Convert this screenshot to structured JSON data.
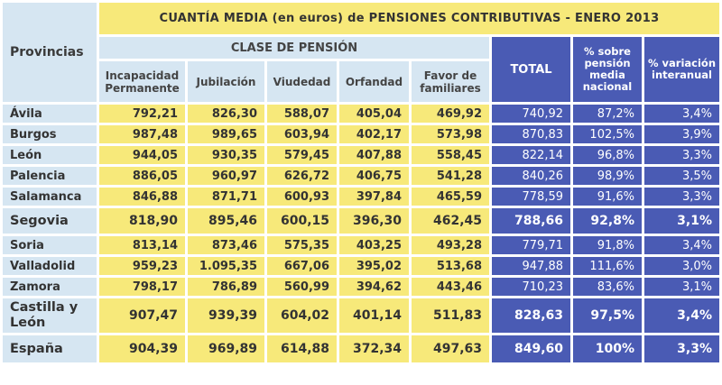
{
  "title": "CUANTÍA MEDIA (en euros) de PENSIONES CONTRIBUTIVAS - ENERO 2013",
  "headers": {
    "provincias": "Provincias",
    "clase": "CLASE DE PENSIÓN",
    "incapacidad": "Incapacidad Permanente",
    "jubilacion": "Jubilación",
    "viudedad": "Viudedad",
    "orfandad": "Orfandad",
    "favor": "Favor de familiares",
    "total": "TOTAL",
    "pct_nacional": "% sobre pensión media nacional",
    "pct_interanual": "% variación interanual"
  },
  "rows": [
    {
      "prov": "Ávila",
      "inc": "792,21",
      "jub": "826,30",
      "viu": "588,07",
      "orf": "405,04",
      "fav": "469,92",
      "tot": "740,92",
      "pn": "87,2%",
      "pv": "3,4%"
    },
    {
      "prov": "Burgos",
      "inc": "987,48",
      "jub": "989,65",
      "viu": "603,94",
      "orf": "402,17",
      "fav": "573,98",
      "tot": "870,83",
      "pn": "102,5%",
      "pv": "3,9%"
    },
    {
      "prov": "León",
      "inc": "944,05",
      "jub": "930,35",
      "viu": "579,45",
      "orf": "407,88",
      "fav": "558,45",
      "tot": "822,14",
      "pn": "96,8%",
      "pv": "3,3%"
    },
    {
      "prov": "Palencia",
      "inc": "886,05",
      "jub": "960,97",
      "viu": "626,72",
      "orf": "406,75",
      "fav": "541,28",
      "tot": "840,26",
      "pn": "98,9%",
      "pv": "3,5%"
    },
    {
      "prov": "Salamanca",
      "inc": "846,88",
      "jub": "871,71",
      "viu": "600,93",
      "orf": "397,84",
      "fav": "465,59",
      "tot": "778,59",
      "pn": "91,6%",
      "pv": "3,3%"
    },
    {
      "prov": "Segovia",
      "inc": "818,90",
      "jub": "895,46",
      "viu": "600,15",
      "orf": "396,30",
      "fav": "462,45",
      "tot": "788,66",
      "pn": "92,8%",
      "pv": "3,1%"
    },
    {
      "prov": "Soria",
      "inc": "813,14",
      "jub": "873,46",
      "viu": "575,35",
      "orf": "403,25",
      "fav": "493,28",
      "tot": "779,71",
      "pn": "91,8%",
      "pv": "3,4%"
    },
    {
      "prov": "Valladolid",
      "inc": "959,23",
      "jub": "1.095,35",
      "viu": "667,06",
      "orf": "395,02",
      "fav": "513,68",
      "tot": "947,88",
      "pn": "111,6%",
      "pv": "3,0%"
    },
    {
      "prov": "Zamora",
      "inc": "798,17",
      "jub": "786,89",
      "viu": "560,99",
      "orf": "394,62",
      "fav": "443,46",
      "tot": "710,23",
      "pn": "83,6%",
      "pv": "3,1%"
    },
    {
      "prov": "Castilla y León",
      "inc": "907,47",
      "jub": "939,39",
      "viu": "604,02",
      "orf": "401,14",
      "fav": "511,83",
      "tot": "828,63",
      "pn": "97,5%",
      "pv": "3,4%"
    },
    {
      "prov": "España",
      "inc": "904,39",
      "jub": "969,89",
      "viu": "614,88",
      "orf": "372,34",
      "fav": "497,63",
      "tot": "849,60",
      "pn": "100%",
      "pv": "3,3%"
    }
  ]
}
